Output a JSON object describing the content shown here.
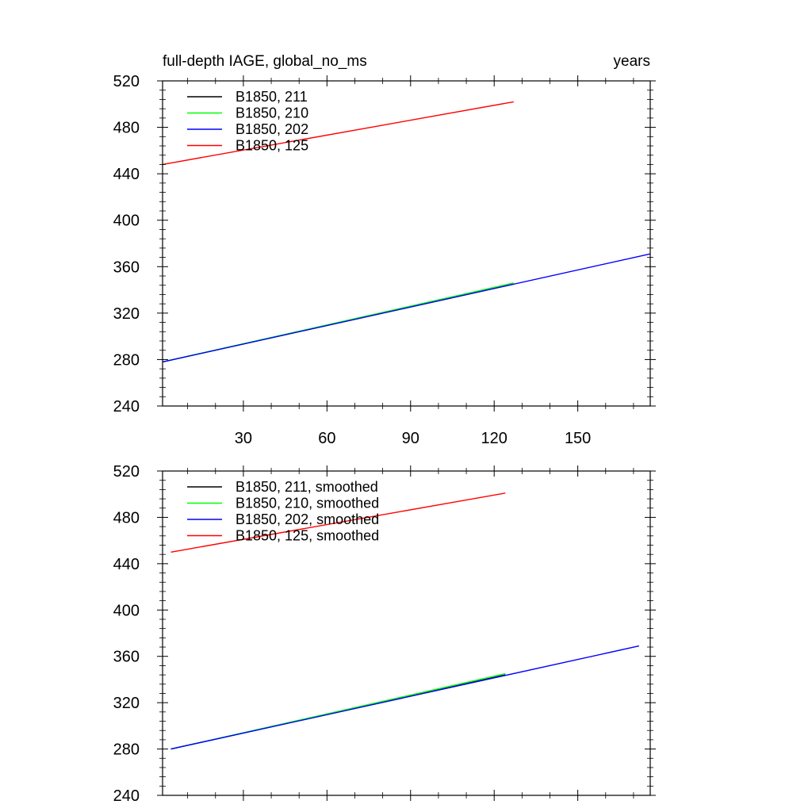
{
  "chart_data": [
    {
      "type": "line",
      "left_title": "full-depth IAGE, global_no_ms",
      "right_title": "years",
      "xlim": [
        1,
        176
      ],
      "ylim": [
        240,
        520
      ],
      "xticks": [
        30,
        60,
        90,
        120,
        150
      ],
      "show_x_tick_labels": true,
      "yticks": [
        240,
        280,
        320,
        360,
        400,
        440,
        480,
        520
      ],
      "series": [
        {
          "name": "B1850, 211",
          "color": "#000000",
          "x": [
            1,
            127
          ],
          "y": [
            278,
            345
          ]
        },
        {
          "name": "B1850, 210",
          "color": "#00ff00",
          "x": [
            1,
            127
          ],
          "y": [
            278,
            346
          ]
        },
        {
          "name": "B1850, 202",
          "color": "#0000ff",
          "x": [
            1,
            176
          ],
          "y": [
            278,
            371
          ]
        },
        {
          "name": "B1850, 125",
          "color": "#ff0000",
          "x": [
            1,
            127
          ],
          "y": [
            448,
            502
          ]
        }
      ]
    },
    {
      "type": "line",
      "left_title": "",
      "right_title": "",
      "xlim": [
        1,
        176
      ],
      "ylim": [
        240,
        520
      ],
      "xticks": [
        30,
        60,
        90,
        120,
        150
      ],
      "show_x_tick_labels": false,
      "yticks": [
        240,
        280,
        320,
        360,
        400,
        440,
        480,
        520
      ],
      "series": [
        {
          "name": "B1850, 211, smoothed",
          "color": "#000000",
          "x": [
            4,
            124
          ],
          "y": [
            280,
            344
          ]
        },
        {
          "name": "B1850, 210, smoothed",
          "color": "#00ff00",
          "x": [
            4,
            124
          ],
          "y": [
            280,
            345
          ]
        },
        {
          "name": "B1850, 202, smoothed",
          "color": "#0000ff",
          "x": [
            4,
            172
          ],
          "y": [
            280,
            369
          ]
        },
        {
          "name": "B1850, 125, smoothed",
          "color": "#ff0000",
          "x": [
            4,
            124
          ],
          "y": [
            450,
            501
          ]
        }
      ]
    }
  ]
}
